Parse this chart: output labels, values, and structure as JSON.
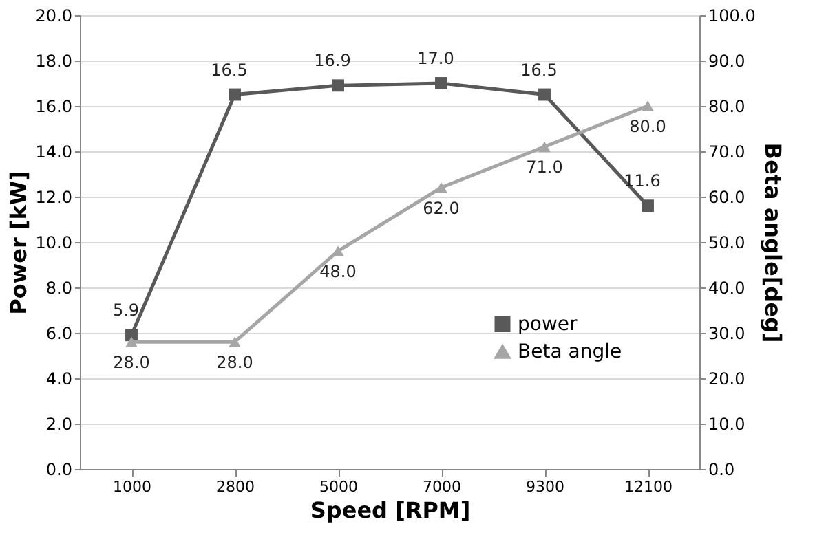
{
  "chart_data": {
    "type": "line",
    "xlabel": "Speed [RPM]",
    "ylabel": "Power [kW]",
    "y2label": "Beta angle[deg]",
    "categories": [
      "1000",
      "2800",
      "5000",
      "7000",
      "9300",
      "12100"
    ],
    "series": [
      {
        "name": "power",
        "color": "#595959",
        "marker": "square",
        "values": [
          5.9,
          16.5,
          16.9,
          17.0,
          16.5,
          11.6
        ],
        "value_labels": [
          "5.9",
          "16.5",
          "16.9",
          "17.0",
          "16.5",
          "11.6"
        ]
      },
      {
        "name": "Beta angle",
        "color": "#a6a6a6",
        "marker": "triangle",
        "axis": "y2",
        "values": [
          28,
          28,
          48,
          62,
          71,
          80
        ],
        "value_labels": [
          "28.0",
          "28.0",
          "48.0",
          "62.0",
          "71.0",
          "80.0"
        ]
      }
    ],
    "ylim": [
      0,
      20
    ],
    "yticks": [
      {
        "value": 0,
        "label": "0.0"
      },
      {
        "value": 2,
        "label": "2.0"
      },
      {
        "value": 4,
        "label": "4.0"
      },
      {
        "value": 6,
        "label": "6.0"
      },
      {
        "value": 8,
        "label": "8.0"
      },
      {
        "value": 10,
        "label": "10.0"
      },
      {
        "value": 12,
        "label": "12.0"
      },
      {
        "value": 14,
        "label": "14.0"
      },
      {
        "value": 16,
        "label": "16.0"
      },
      {
        "value": 18,
        "label": "18.0"
      },
      {
        "value": 20,
        "label": "20.0"
      }
    ],
    "y2lim": [
      0,
      100
    ],
    "y2ticks": [
      {
        "value": 0,
        "label": "0.0"
      },
      {
        "value": 10,
        "label": "10.0"
      },
      {
        "value": 20,
        "label": "20.0"
      },
      {
        "value": 30,
        "label": "30.0"
      },
      {
        "value": 40,
        "label": "40.0"
      },
      {
        "value": 50,
        "label": "50.0"
      },
      {
        "value": 60,
        "label": "60.0"
      },
      {
        "value": 70,
        "label": "70.0"
      },
      {
        "value": 80,
        "label": "80.0"
      },
      {
        "value": 90,
        "label": "90.0"
      },
      {
        "value": 100,
        "label": "100.0"
      }
    ],
    "grid": "y",
    "legend": "right",
    "line_style": "solid"
  }
}
